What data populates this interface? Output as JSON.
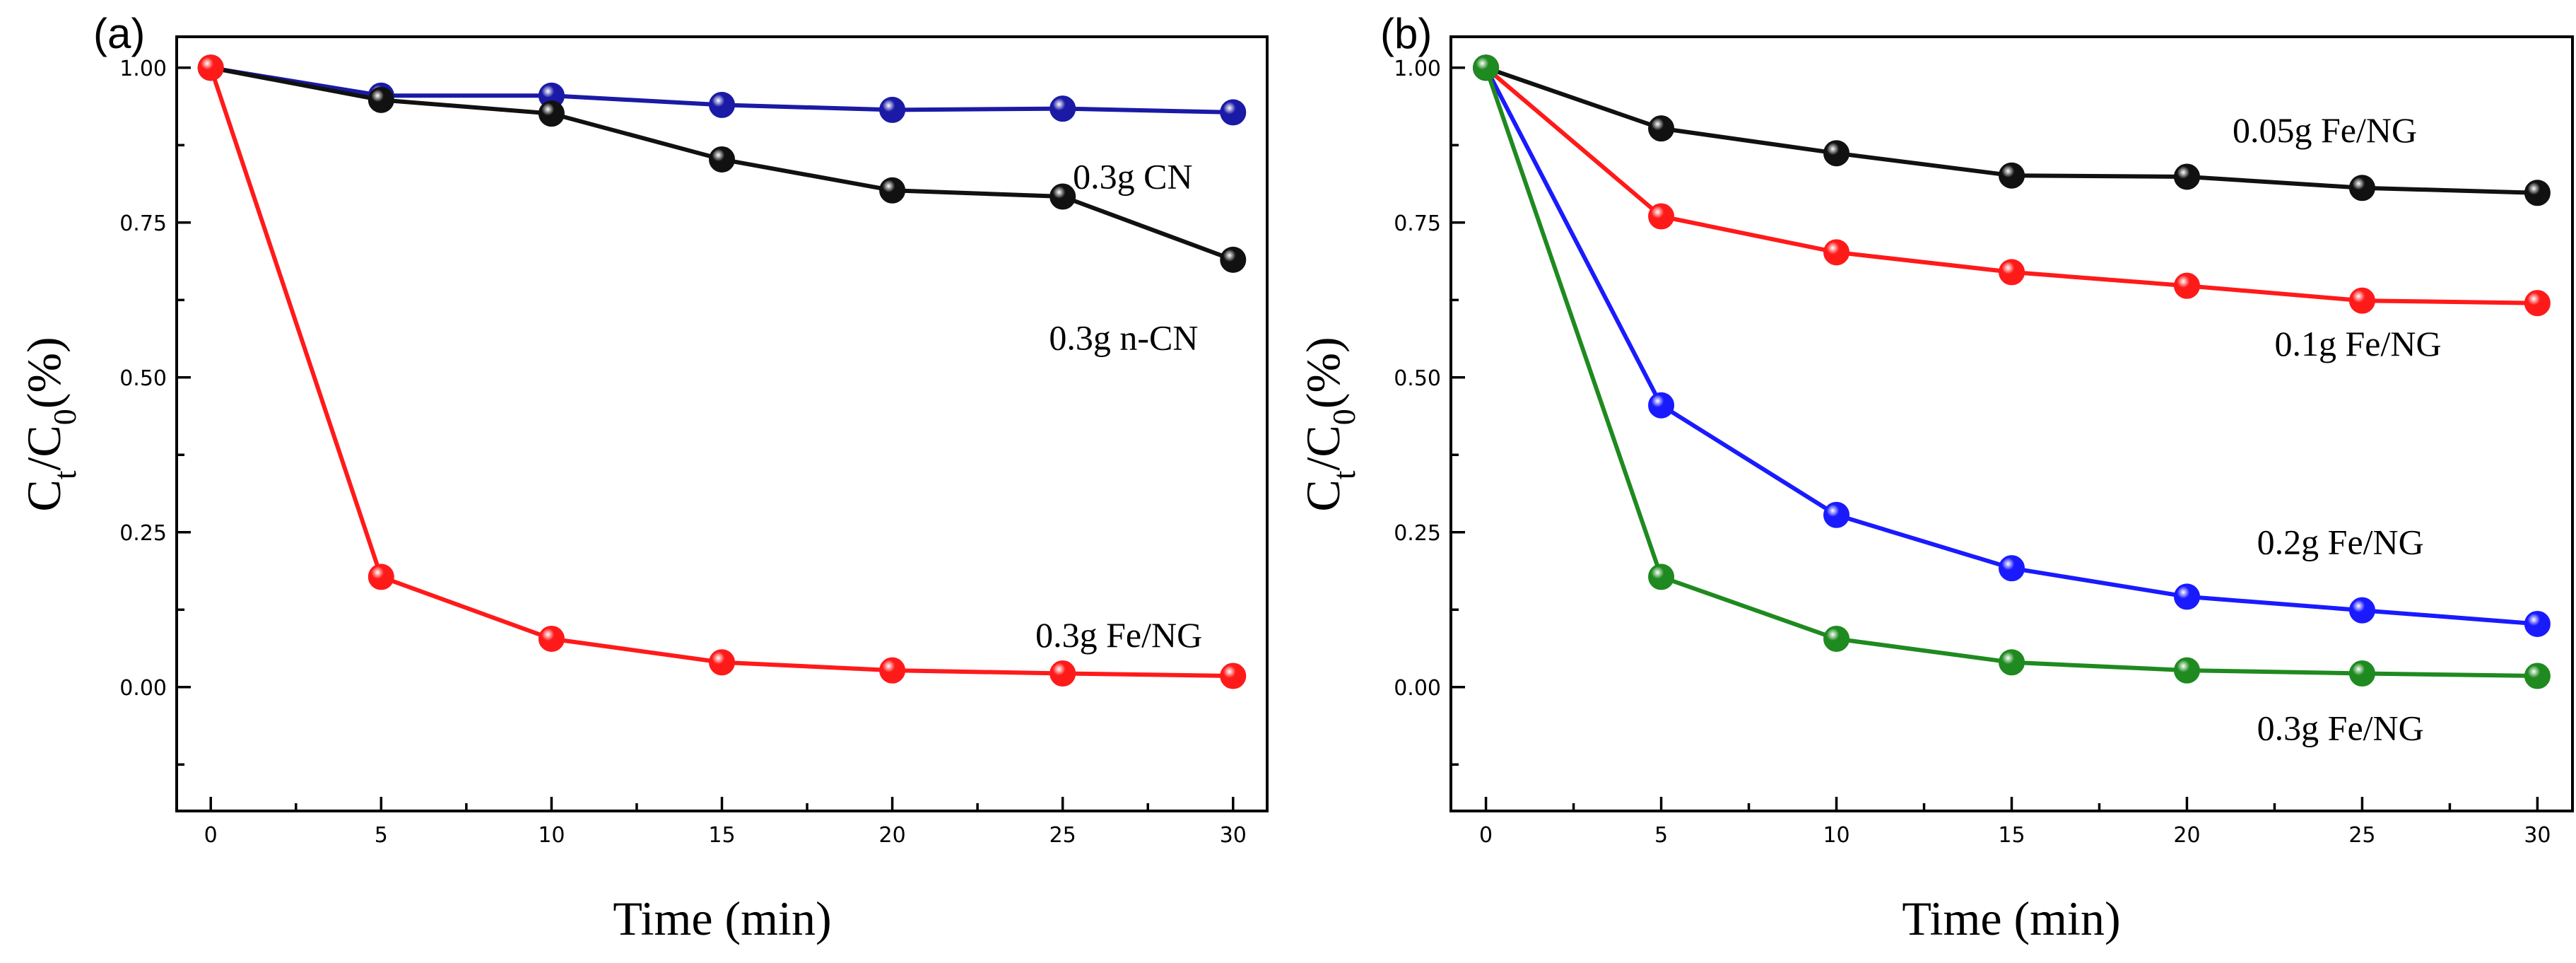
{
  "chart_data": [
    {
      "panel": "(a)",
      "type": "line",
      "xlabel": "Time (min)",
      "ylabel": {
        "main": "C",
        "sub1": "t",
        "mid": "/C",
        "sub2": "0",
        "tail": "(%)"
      },
      "xlim": [
        -1,
        31
      ],
      "ylim": [
        -0.2,
        1.05
      ],
      "xticks": [
        0,
        5,
        10,
        15,
        20,
        25,
        30
      ],
      "yticks": [
        0.0,
        0.25,
        0.5,
        0.75,
        1.0
      ],
      "ytick_labels": [
        "0.00",
        "0.25",
        "0.50",
        "0.75",
        "1.00"
      ],
      "x": [
        0,
        5,
        10,
        15,
        20,
        25,
        30
      ],
      "series": [
        {
          "name": "0.3g CN",
          "color": "#1a1aa6",
          "values": [
            1.0,
            0.955,
            0.955,
            0.94,
            0.932,
            0.934,
            0.928
          ],
          "label_at": [
            25.3,
            0.805
          ]
        },
        {
          "name": "0.3g n-CN",
          "color": "#111111",
          "values": [
            1.0,
            0.948,
            0.926,
            0.852,
            0.802,
            0.792,
            0.69
          ],
          "label_at": [
            24.6,
            0.545
          ]
        },
        {
          "name": "0.3g Fe/NG",
          "color": "#ff1a1a",
          "values": [
            1.0,
            0.178,
            0.078,
            0.04,
            0.027,
            0.022,
            0.018
          ],
          "label_at": [
            24.2,
            0.065
          ]
        }
      ]
    },
    {
      "panel": "(b)",
      "type": "line",
      "xlabel": "Time (min)",
      "ylabel": {
        "main": "C",
        "sub1": "t",
        "mid": "/C",
        "sub2": "0",
        "tail": "(%)"
      },
      "xlim": [
        -1,
        31
      ],
      "ylim": [
        -0.2,
        1.05
      ],
      "xticks": [
        0,
        5,
        10,
        15,
        20,
        25,
        30
      ],
      "yticks": [
        0.0,
        0.25,
        0.5,
        0.75,
        1.0
      ],
      "ytick_labels": [
        "0.00",
        "0.25",
        "0.50",
        "0.75",
        "1.00"
      ],
      "x": [
        0,
        5,
        10,
        15,
        20,
        25,
        30
      ],
      "series": [
        {
          "name": "0.05g Fe/NG",
          "color": "#111111",
          "values": [
            1.0,
            0.902,
            0.862,
            0.826,
            0.824,
            0.806,
            0.798
          ],
          "label_at": [
            21.3,
            0.88
          ]
        },
        {
          "name": "0.1g Fe/NG",
          "color": "#ff1a1a",
          "values": [
            1.0,
            0.76,
            0.702,
            0.67,
            0.648,
            0.624,
            0.62
          ],
          "label_at": [
            22.5,
            0.535
          ]
        },
        {
          "name": "0.2g Fe/NG",
          "color": "#1a1aff",
          "values": [
            1.0,
            0.455,
            0.278,
            0.192,
            0.146,
            0.124,
            0.102
          ],
          "label_at": [
            22.0,
            0.215
          ]
        },
        {
          "name": "0.3g Fe/NG",
          "color": "#1f8a1f",
          "values": [
            1.0,
            0.178,
            0.078,
            0.04,
            0.027,
            0.022,
            0.018
          ],
          "label_at": [
            22.0,
            -0.085
          ]
        }
      ]
    }
  ]
}
